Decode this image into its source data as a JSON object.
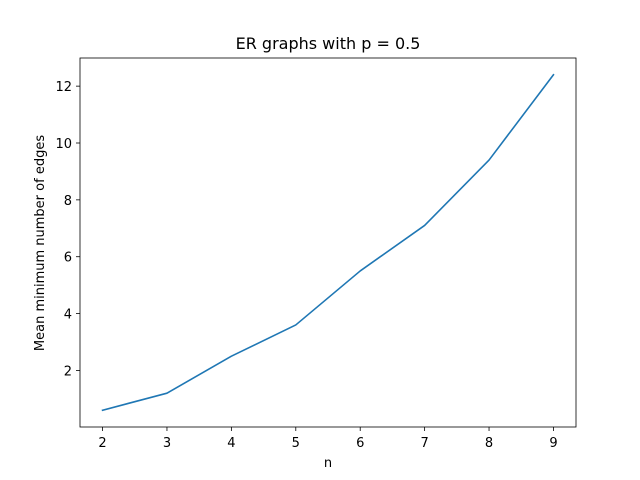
{
  "chart_data": {
    "type": "line",
    "title": "ER graphs with p = 0.5",
    "xlabel": "n",
    "ylabel": "Mean minimum number of edges",
    "x": [
      2,
      3,
      4,
      5,
      6,
      7,
      8,
      9
    ],
    "series": [
      {
        "values": [
          0.6,
          1.2,
          2.5,
          3.6,
          5.5,
          7.1,
          9.4,
          12.4
        ],
        "color": "#1f77b4"
      }
    ],
    "xlim": [
      1.65,
      9.35
    ],
    "ylim": [
      0.01,
      12.99
    ],
    "xticks": [
      "2",
      "3",
      "4",
      "5",
      "6",
      "7",
      "8",
      "9"
    ],
    "yticks": [
      "2",
      "4",
      "6",
      "8",
      "10",
      "12"
    ],
    "grid": false,
    "legend": "none"
  }
}
